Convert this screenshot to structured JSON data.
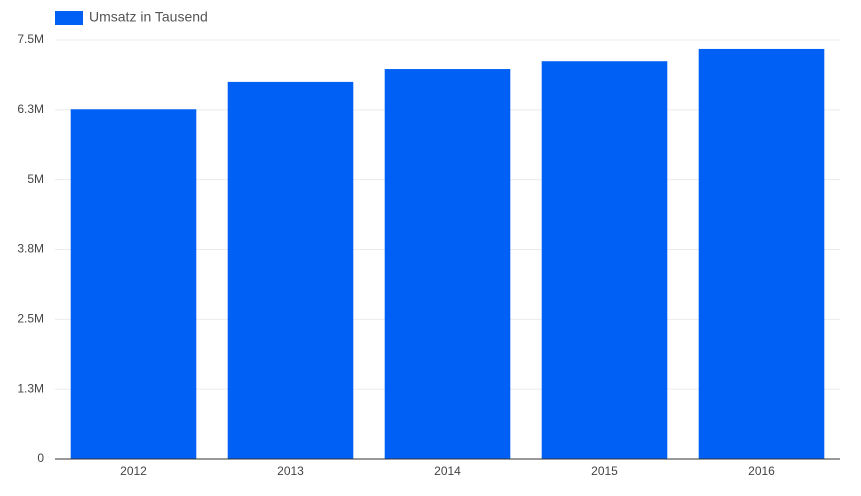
{
  "chart_data": {
    "type": "bar",
    "categories": [
      "2012",
      "2013",
      "2014",
      "2015",
      "2016"
    ],
    "series": [
      {
        "name": "Umsatz in Tausend",
        "color": "#0060f6",
        "values": [
          6260000,
          6750000,
          6980000,
          7120000,
          7340000
        ]
      }
    ],
    "ylim": [
      0,
      7500000
    ],
    "yticks": [
      0,
      {
        "value": 1250000,
        "label": "1.3M"
      },
      {
        "value": 2500000,
        "label": "2.5M"
      },
      {
        "value": 3750000,
        "label": "3.8M"
      },
      {
        "value": 5000000,
        "label": "5M"
      },
      {
        "value": 6250000,
        "label": "6.3M"
      },
      {
        "value": 7500000,
        "label": "7.5M"
      }
    ],
    "grid": true,
    "legend": "top-left"
  }
}
